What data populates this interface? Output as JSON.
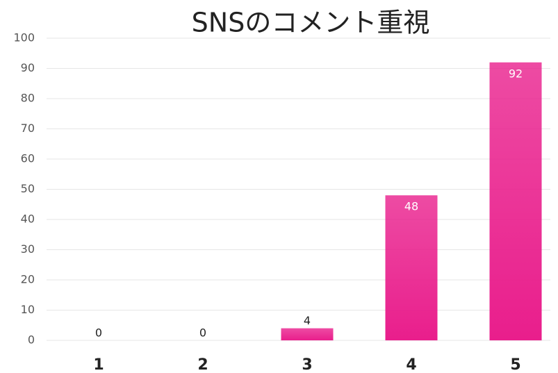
{
  "chart_data": {
    "type": "bar",
    "title": "SNSのコメント重視",
    "categories": [
      "1",
      "2",
      "3",
      "4",
      "5"
    ],
    "values": [
      0,
      0,
      4,
      48,
      92
    ],
    "color": "#e91e8c",
    "ylim": [
      0,
      100
    ],
    "yticks": [
      0,
      10,
      20,
      30,
      40,
      50,
      60,
      70,
      80,
      90,
      100
    ],
    "grid": true
  }
}
